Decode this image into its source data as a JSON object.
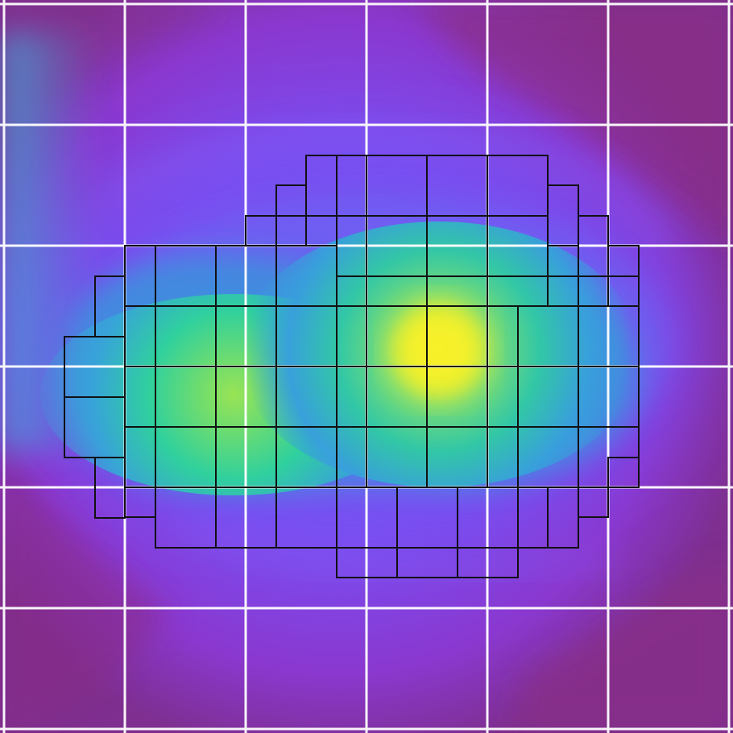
{
  "image": {
    "kind": "amr-density-slice",
    "background_color": "#7e2f8f"
  },
  "colormap": {
    "name": "plasma-like",
    "low": "#7e2f8f",
    "mid_low": "#7a4ef2",
    "mid": "#37a5d8",
    "mid_high": "#2fd49a",
    "high": "#f3ef1f"
  },
  "grid": {
    "coarse": {
      "color": "#ffffff",
      "spacing_cells": 6
    },
    "fine": {
      "color": "#111111",
      "spacing_cells": 6
    }
  }
}
